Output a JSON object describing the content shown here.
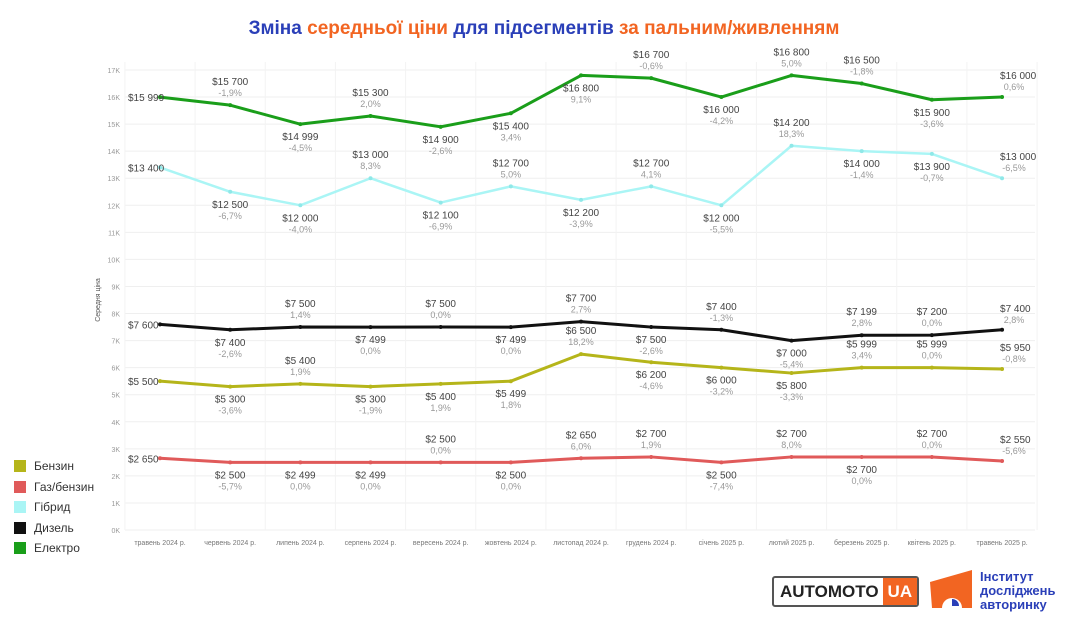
{
  "title_parts": [
    {
      "text": "Зміна ",
      "color": "blue"
    },
    {
      "text": "середньої ціни",
      "color": "orange"
    },
    {
      "text": " для підсегментів ",
      "color": "blue"
    },
    {
      "text": "за пальним/живленням",
      "color": "orange"
    }
  ],
  "chart_data": {
    "type": "line",
    "title": "Зміна середньої ціни для підсегментів за пальним/живленням",
    "ylabel": "Середня ціна",
    "xlabel": "",
    "ylim": [
      0,
      17000
    ],
    "yticks": [
      "0K",
      "1K",
      "2K",
      "3K",
      "4K",
      "5K",
      "6K",
      "7K",
      "8K",
      "9K",
      "10K",
      "11K",
      "12K",
      "13K",
      "14K",
      "15K",
      "16K",
      "17K"
    ],
    "grid": true,
    "legend_position": "bottom-left",
    "categories": [
      "травень 2024 р.",
      "червень 2024 р.",
      "липень 2024 р.",
      "серпень 2024 р.",
      "вересень 2024 р.",
      "жовтень 2024 р.",
      "листопад 2024 р.",
      "грудень 2024 р.",
      "січень 2025 р.",
      "лютий 2025 р.",
      "березень 2025 р.",
      "квітень 2025 р.",
      "травень 2025 р."
    ],
    "series": [
      {
        "name": "Бензин",
        "color": "#b5b51a",
        "values": [
          5500,
          5300,
          5400,
          5300,
          5400,
          5499,
          6500,
          6200,
          6000,
          5800,
          5999,
          5999,
          5950
        ],
        "labels": [
          "$5 500",
          "$5 300",
          "$5 400",
          "$5 300",
          "$5 400",
          "$5 499",
          "$6 500",
          "$6 200",
          "$6 000",
          "$5 800",
          "$5 999",
          "$5 999",
          "$5 950"
        ],
        "changes": [
          "",
          "-3,6%",
          "1,9%",
          "-1,9%",
          "1,9%",
          "1,8%",
          "18,2%",
          "-4,6%",
          "-3,2%",
          "-3,3%",
          "3,4%",
          "0,0%",
          "-0,8%"
        ]
      },
      {
        "name": "Газ/бензин",
        "color": "#e05a5a",
        "values": [
          2650,
          2500,
          2499,
          2499,
          2500,
          2500,
          2650,
          2700,
          2500,
          2700,
          2700,
          2700,
          2550
        ],
        "labels": [
          "$2 650",
          "$2 500",
          "$2 499",
          "$2 499",
          "$2 500",
          "$2 500",
          "$2 650",
          "$2 700",
          "$2 500",
          "$2 700",
          "$2 700",
          "$2 700",
          "$2 550"
        ],
        "changes": [
          "",
          "-5,7%",
          "0,0%",
          "0,0%",
          "0,0%",
          "0,0%",
          "6,0%",
          "1,9%",
          "-7,4%",
          "8,0%",
          "0,0%",
          "0,0%",
          "-5,6%"
        ]
      },
      {
        "name": "Гібрид",
        "color": "#aaf5f5",
        "values": [
          13400,
          12500,
          12000,
          13000,
          12100,
          12700,
          12200,
          12700,
          12000,
          14200,
          14000,
          13900,
          13000
        ],
        "labels": [
          "$13 400",
          "$12 500",
          "$12 000",
          "$13 000",
          "$12 100",
          "$12 700",
          "$12 200",
          "$12 700",
          "$12 000",
          "$14 200",
          "$14 000",
          "$13 900",
          "$13 000"
        ],
        "changes": [
          "",
          "-6,7%",
          "-4,0%",
          "8,3%",
          "-6,9%",
          "5,0%",
          "-3,9%",
          "4,1%",
          "-5,5%",
          "18,3%",
          "-1,4%",
          "-0,7%",
          "-6,5%"
        ]
      },
      {
        "name": "Дизель",
        "color": "#111111",
        "values": [
          7600,
          7400,
          7500,
          7499,
          7500,
          7499,
          7700,
          7500,
          7400,
          7000,
          7199,
          7200,
          7400
        ],
        "labels": [
          "$7 600",
          "$7 400",
          "$7 500",
          "$7 499",
          "$7 500",
          "$7 499",
          "$7 700",
          "$7 500",
          "$7 400",
          "$7 000",
          "$7 199",
          "$7 200",
          "$7 400"
        ],
        "changes": [
          "",
          "-2,6%",
          "1,4%",
          "0,0%",
          "0,0%",
          "0,0%",
          "2,7%",
          "-2,6%",
          "-1,3%",
          "-5,4%",
          "2,8%",
          "0,0%",
          "2,8%"
        ]
      },
      {
        "name": "Електро",
        "color": "#1a9e1a",
        "values": [
          15999,
          15700,
          14999,
          15300,
          14900,
          15400,
          16800,
          16700,
          16000,
          16800,
          16500,
          15900,
          16000
        ],
        "labels": [
          "$15 999",
          "$15 700",
          "$14 999",
          "$15 300",
          "$14 900",
          "$15 400",
          "$16 800",
          "$16 700",
          "$16 000",
          "$16 800",
          "$16 500",
          "$15 900",
          "$16 000"
        ],
        "changes": [
          "",
          "-1,9%",
          "-4,5%",
          "2,0%",
          "-2,6%",
          "3,4%",
          "9,1%",
          "-0,6%",
          "-4,2%",
          "5,0%",
          "-1,8%",
          "-3,6%",
          "0,6%"
        ]
      }
    ]
  },
  "logos": {
    "automoto_a": "AUTOMOTO",
    "automoto_b": "UA",
    "institute_lines": [
      "Інститут",
      "досліджень",
      "авторинку"
    ]
  }
}
